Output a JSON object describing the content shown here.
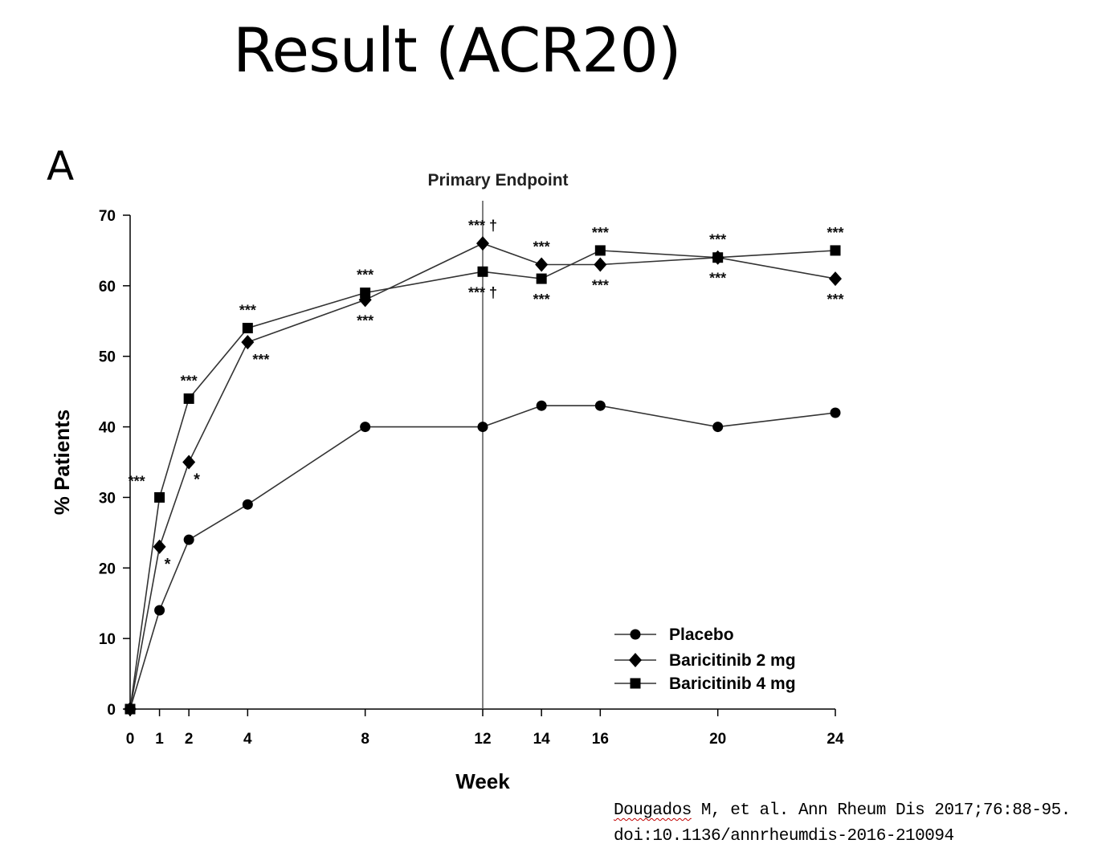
{
  "slide": {
    "title": "Result (ACR20)",
    "panel_label": "A",
    "citation_author": "Dougados",
    "citation_rest": " M, et al. Ann Rheum Dis 2017;76:88-95.",
    "citation_doi": "doi:10.1136/annrheumdis-2016-210094",
    "spellcheck_color": "#c00000"
  },
  "chart_data": {
    "type": "line",
    "title": "Primary Endpoint",
    "xlabel": "Week",
    "ylabel": "% Patients",
    "x": [
      0,
      1,
      2,
      4,
      8,
      12,
      14,
      16,
      20,
      24
    ],
    "xlim": [
      0,
      24
    ],
    "ylim": [
      0,
      70
    ],
    "yticks": [
      0,
      10,
      20,
      30,
      40,
      50,
      60,
      70
    ],
    "reference_line_x": 12,
    "grid": false,
    "legend_position": "bottom-right",
    "series": [
      {
        "name": "Placebo",
        "marker": "circle",
        "values": [
          0,
          14,
          24,
          29,
          40,
          40,
          43,
          43,
          40,
          42
        ]
      },
      {
        "name": "Baricitinib 2 mg",
        "marker": "diamond",
        "values": [
          0,
          23,
          35,
          52,
          58,
          66,
          63,
          63,
          64,
          61
        ]
      },
      {
        "name": "Baricitinib 4 mg",
        "marker": "square",
        "values": [
          0,
          30,
          44,
          54,
          59,
          62,
          61,
          65,
          64,
          65
        ]
      }
    ],
    "annotations": [
      {
        "text": "***",
        "x": 1,
        "series": "Baricitinib 4 mg",
        "side": "left"
      },
      {
        "text": "*",
        "x": 1,
        "series": "Baricitinib 2 mg",
        "side": "below-right"
      },
      {
        "text": "***",
        "x": 2,
        "series": "Baricitinib 4 mg",
        "side": "above"
      },
      {
        "text": "*",
        "x": 2,
        "series": "Baricitinib 2 mg",
        "side": "below-right"
      },
      {
        "text": "***",
        "x": 4,
        "series": "Baricitinib 4 mg",
        "side": "above"
      },
      {
        "text": "***",
        "x": 4,
        "series": "Baricitinib 2 mg",
        "side": "below-right"
      },
      {
        "text": "***",
        "x": 8,
        "series": "Baricitinib 4 mg",
        "side": "above"
      },
      {
        "text": "***",
        "x": 8,
        "series": "Baricitinib 2 mg",
        "side": "below"
      },
      {
        "text": "*** †",
        "x": 12,
        "series": "Baricitinib 2 mg",
        "side": "above"
      },
      {
        "text": "*** †",
        "x": 12,
        "series": "Baricitinib 4 mg",
        "side": "below"
      },
      {
        "text": "***",
        "x": 14,
        "series": "Baricitinib 2 mg",
        "side": "above"
      },
      {
        "text": "***",
        "x": 14,
        "series": "Baricitinib 4 mg",
        "side": "below"
      },
      {
        "text": "***",
        "x": 16,
        "series": "Baricitinib 4 mg",
        "side": "above"
      },
      {
        "text": "***",
        "x": 16,
        "series": "Baricitinib 2 mg",
        "side": "below"
      },
      {
        "text": "***",
        "x": 20,
        "series": "Baricitinib 4 mg",
        "side": "above"
      },
      {
        "text": "***",
        "x": 20,
        "series": "Baricitinib 2 mg",
        "side": "below"
      },
      {
        "text": "***",
        "x": 24,
        "series": "Baricitinib 4 mg",
        "side": "above"
      },
      {
        "text": "***",
        "x": 24,
        "series": "Baricitinib 2 mg",
        "side": "below"
      }
    ]
  }
}
